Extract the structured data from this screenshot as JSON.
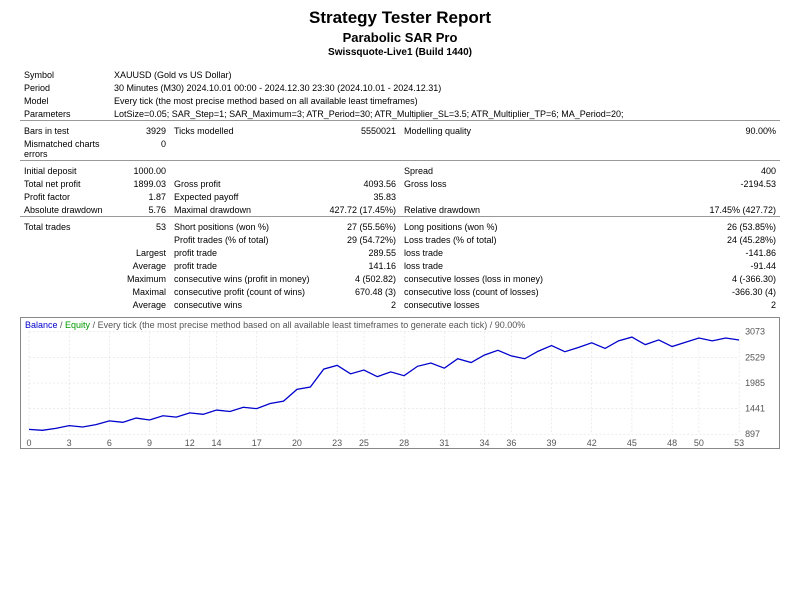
{
  "header": {
    "title": "Strategy Tester Report",
    "subtitle": "Parabolic SAR Pro",
    "subsub": "Swissquote-Live1 (Build 1440)"
  },
  "info": {
    "symbol_lbl": "Symbol",
    "symbol_val": "XAUUSD (Gold vs US Dollar)",
    "period_lbl": "Period",
    "period_val": "30 Minutes (M30) 2024.10.01 00:00 - 2024.12.30 23:30 (2024.10.01 - 2024.12.31)",
    "model_lbl": "Model",
    "model_val": "Every tick (the most precise method based on all available least timeframes)",
    "params_lbl": "Parameters",
    "params_val": "LotSize=0.05; SAR_Step=1; SAR_Maximum=3; ATR_Period=30; ATR_Multiplier_SL=3.5; ATR_Multiplier_TP=6; MA_Period=20;"
  },
  "stats": {
    "bars_lbl": "Bars in test",
    "bars_val": "3929",
    "ticks_lbl": "Ticks modelled",
    "ticks_val": "5550021",
    "mq_lbl": "Modelling quality",
    "mq_val": "90.00%",
    "mism_lbl": "Mismatched charts errors",
    "mism_val": "0",
    "initdep_lbl": "Initial deposit",
    "initdep_val": "1000.00",
    "spread_lbl": "Spread",
    "spread_val": "400",
    "tnp_lbl": "Total net profit",
    "tnp_val": "1899.03",
    "gp_lbl": "Gross profit",
    "gp_val": "4093.56",
    "gl_lbl": "Gross loss",
    "gl_val": "-2194.53",
    "pf_lbl": "Profit factor",
    "pf_val": "1.87",
    "ep_lbl": "Expected payoff",
    "ep_val": "35.83",
    "ad_lbl": "Absolute drawdown",
    "ad_val": "5.76",
    "md_lbl": "Maximal drawdown",
    "md_val": "427.72 (17.45%)",
    "rd_lbl": "Relative drawdown",
    "rd_val": "17.45% (427.72)",
    "tt_lbl": "Total trades",
    "tt_val": "53",
    "sp_lbl": "Short positions (won %)",
    "sp_val": "27 (55.56%)",
    "lp_lbl": "Long positions (won %)",
    "lp_val": "26 (53.85%)",
    "pt_lbl": "Profit trades (% of total)",
    "pt_val": "29 (54.72%)",
    "lt_lbl": "Loss trades (% of total)",
    "lt_val": "24 (45.28%)",
    "lg_lbl": "Largest",
    "lg_pt_lbl": "profit trade",
    "lg_pt_val": "289.55",
    "lg_lt_lbl": "loss trade",
    "lg_lt_val": "-141.86",
    "av_lbl": "Average",
    "av_pt_lbl": "profit trade",
    "av_pt_val": "141.16",
    "av_lt_lbl": "loss trade",
    "av_lt_val": "-91.44",
    "mx_lbl": "Maximum",
    "mx_cw_lbl": "consecutive wins (profit in money)",
    "mx_cw_val": "4 (502.82)",
    "mx_cl_lbl": "consecutive losses (loss in money)",
    "mx_cl_val": "4 (-366.30)",
    "ml_lbl": "Maximal",
    "ml_cp_lbl": "consecutive profit (count of wins)",
    "ml_cp_val": "670.48 (3)",
    "ml_cl_lbl": "consecutive loss (count of losses)",
    "ml_cl_val": "-366.30 (4)",
    "ac_lbl": "Average",
    "ac_cw_lbl": "consecutive wins",
    "ac_cw_val": "2",
    "ac_cl_lbl": "consecutive losses",
    "ac_cl_val": "2"
  },
  "chart": {
    "balance_label": "Balance",
    "equity_label": "Equity",
    "rest_label": " / Every tick (the most precise method based on all available least timeframes to generate each tick) / 90.00%",
    "ylim": [
      897,
      3073
    ],
    "yticks": [
      897,
      1441,
      1985,
      2529,
      3073
    ],
    "xlim": [
      0,
      53
    ],
    "xticks": [
      0,
      3,
      6,
      9,
      12,
      14,
      17,
      20,
      23,
      25,
      28,
      31,
      34,
      36,
      39,
      42,
      45,
      48,
      50,
      53
    ],
    "line_color": "#0000cc",
    "grid_color": "#d8d8d8",
    "text_color": "#555555",
    "balance_series": [
      [
        0,
        1000
      ],
      [
        1,
        980
      ],
      [
        2,
        1020
      ],
      [
        3,
        1080
      ],
      [
        4,
        1050
      ],
      [
        5,
        1100
      ],
      [
        6,
        1180
      ],
      [
        7,
        1150
      ],
      [
        8,
        1240
      ],
      [
        9,
        1200
      ],
      [
        10,
        1290
      ],
      [
        11,
        1260
      ],
      [
        12,
        1350
      ],
      [
        13,
        1320
      ],
      [
        14,
        1410
      ],
      [
        15,
        1380
      ],
      [
        16,
        1470
      ],
      [
        17,
        1440
      ],
      [
        18,
        1550
      ],
      [
        19,
        1600
      ],
      [
        20,
        1850
      ],
      [
        21,
        1900
      ],
      [
        22,
        2280
      ],
      [
        23,
        2360
      ],
      [
        24,
        2180
      ],
      [
        25,
        2260
      ],
      [
        26,
        2120
      ],
      [
        27,
        2220
      ],
      [
        28,
        2140
      ],
      [
        29,
        2340
      ],
      [
        30,
        2410
      ],
      [
        31,
        2300
      ],
      [
        32,
        2500
      ],
      [
        33,
        2420
      ],
      [
        34,
        2580
      ],
      [
        35,
        2680
      ],
      [
        36,
        2560
      ],
      [
        37,
        2500
      ],
      [
        38,
        2660
      ],
      [
        39,
        2780
      ],
      [
        40,
        2650
      ],
      [
        41,
        2740
      ],
      [
        42,
        2840
      ],
      [
        43,
        2720
      ],
      [
        44,
        2880
      ],
      [
        45,
        2960
      ],
      [
        46,
        2800
      ],
      [
        47,
        2900
      ],
      [
        48,
        2760
      ],
      [
        49,
        2850
      ],
      [
        50,
        2940
      ],
      [
        51,
        2880
      ],
      [
        52,
        2940
      ],
      [
        53,
        2899
      ]
    ]
  }
}
